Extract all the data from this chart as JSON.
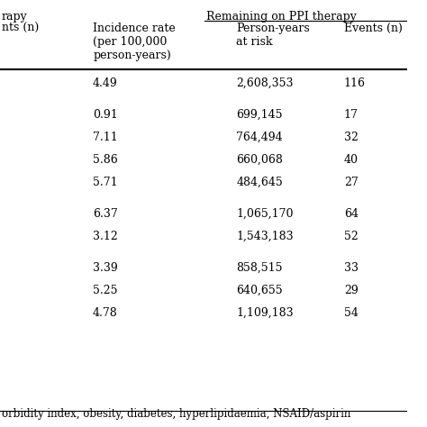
{
  "header_row1": [
    "",
    "Remaining on PPI therapy"
  ],
  "header_row2": [
    "Incidence rate\n(per 100,000\nperson-years)",
    "Person-years\nat risk",
    "Events (n)"
  ],
  "partial_headers_left": [
    "nts (n)",
    "rapy"
  ],
  "rows": [
    [
      "4.49",
      "2,608,353",
      "116"
    ],
    [
      "",
      "",
      ""
    ],
    [
      "0.91",
      "699,145",
      "17"
    ],
    [
      "7.11",
      "764,494",
      "32"
    ],
    [
      "5.86",
      "660,068",
      "40"
    ],
    [
      "5.71",
      "484,645",
      "27"
    ],
    [
      "",
      "",
      ""
    ],
    [
      "6.37",
      "1,065,170",
      "64"
    ],
    [
      "3.12",
      "1,543,183",
      "52"
    ],
    [
      "",
      "",
      ""
    ],
    [
      "3.39",
      "858,515",
      "33"
    ],
    [
      "5.25",
      "640,655",
      "29"
    ],
    [
      "4.78",
      "1,109,183",
      "54"
    ]
  ],
  "footer_text": "orbidity index, obesity, diabetes, hyperlipidaemia, NSAID/aspirin",
  "bg_color": "#ffffff",
  "text_color": "#000000",
  "font_size": 9,
  "title_font_size": 9
}
